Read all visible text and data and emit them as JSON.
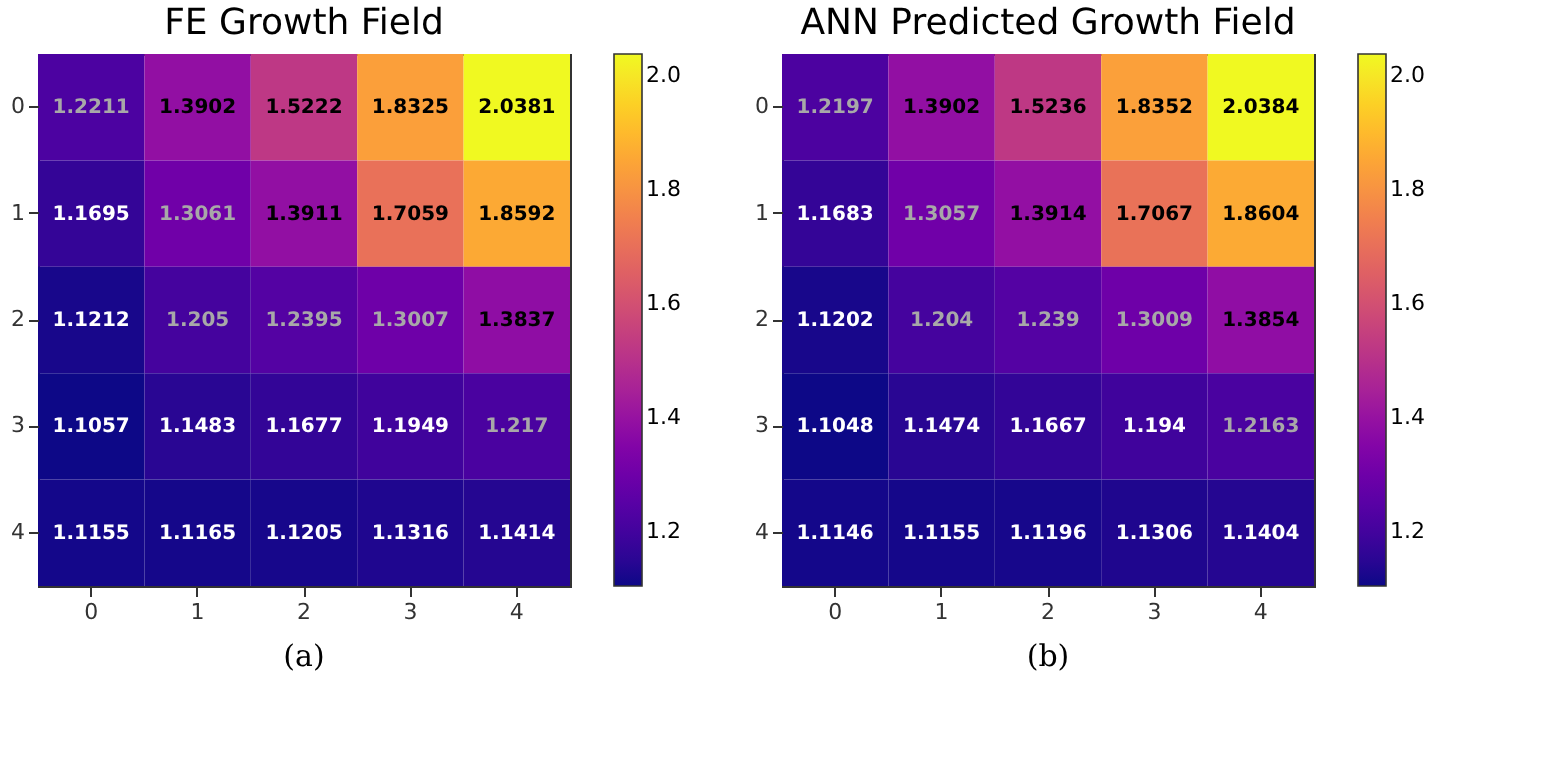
{
  "chart_data": [
    {
      "type": "heatmap",
      "title": "FE Growth Field",
      "categories": [
        "0",
        "1",
        "2",
        "3",
        "4"
      ],
      "y_categories": [
        "0",
        "1",
        "2",
        "3",
        "4"
      ],
      "cells": [
        [
          1.2211,
          1.3902,
          1.5222,
          1.8325,
          2.0381
        ],
        [
          1.1695,
          1.3061,
          1.3911,
          1.7059,
          1.8592
        ],
        [
          1.1212,
          1.205,
          1.2395,
          1.3007,
          1.3837
        ],
        [
          1.1057,
          1.1483,
          1.1677,
          1.1949,
          1.217
        ],
        [
          1.1155,
          1.1165,
          1.1205,
          1.1316,
          1.1414
        ]
      ],
      "data_labels": true,
      "clim": [
        1.1057,
        2.0381
      ],
      "cticks": [
        1.2,
        1.4,
        1.6,
        1.8,
        {
          "value": 2,
          "label": "2.0"
        }
      ],
      "annotations": [
        "(a)"
      ]
    },
    {
      "type": "heatmap",
      "title": "ANN Predicted Growth Field",
      "categories": [
        "0",
        "1",
        "2",
        "3",
        "4"
      ],
      "y_categories": [
        "0",
        "1",
        "2",
        "3",
        "4"
      ],
      "cells": [
        [
          1.2197,
          1.3902,
          1.5236,
          1.8352,
          2.0384
        ],
        [
          1.1683,
          1.3057,
          1.3914,
          1.7067,
          1.8604
        ],
        [
          1.1202,
          1.204,
          1.239,
          1.3009,
          1.3854
        ],
        [
          1.1048,
          1.1474,
          1.1667,
          1.194,
          1.2163
        ],
        [
          1.1146,
          1.1155,
          1.1196,
          1.1306,
          1.1404
        ]
      ],
      "data_labels": true,
      "clim": [
        1.1048,
        2.0384
      ],
      "cticks": [
        1.2,
        1.4,
        1.6,
        1.8,
        {
          "value": 2,
          "label": "2.0"
        }
      ],
      "annotations": [
        "(b)"
      ]
    }
  ]
}
